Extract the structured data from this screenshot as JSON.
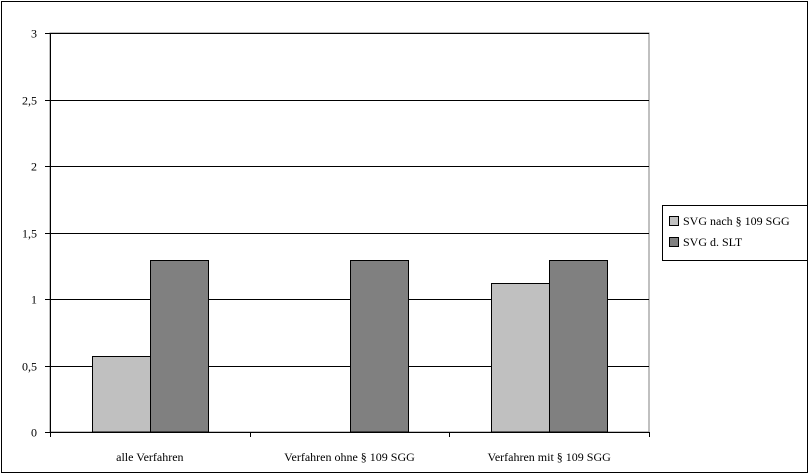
{
  "chart_data": {
    "type": "bar",
    "categories": [
      "alle Verfahren",
      "Verfahren ohne § 109 SGG",
      "Verfahren mit § 109 SGG"
    ],
    "series": [
      {
        "name": "SVG nach § 109 SGG",
        "values": [
          0.57,
          0,
          1.12
        ],
        "color": "#c0c0c0"
      },
      {
        "name": "SVG d. SLT",
        "values": [
          1.29,
          1.29,
          1.29
        ],
        "color": "#808080"
      }
    ],
    "ylim": [
      0,
      3
    ],
    "yticks": [
      0,
      0.5,
      1,
      1.5,
      2,
      2.5,
      3
    ],
    "ytick_labels": [
      "0",
      "0,5",
      "1",
      "1,5",
      "2",
      "2,5",
      "3"
    ],
    "grid": true,
    "legend_position": "right",
    "title": "",
    "xlabel": "",
    "ylabel": ""
  }
}
